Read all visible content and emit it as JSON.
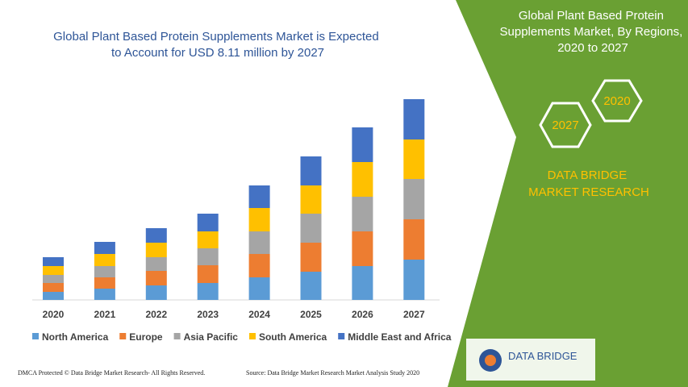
{
  "chart_data": {
    "type": "stacked-bar",
    "title": "Global Plant Based Protein Supplements Market is Expected to Account for USD 8.11 million by 2027",
    "categories": [
      "2020",
      "2021",
      "2022",
      "2023",
      "2024",
      "2025",
      "2026",
      "2027"
    ],
    "series": [
      {
        "name": "North America",
        "color": "#5b9bd5",
        "values": [
          10,
          14,
          18,
          21,
          28,
          35,
          42,
          50
        ]
      },
      {
        "name": "Europe",
        "color": "#ed7d31",
        "values": [
          11,
          14,
          18,
          22,
          29,
          36,
          43,
          50
        ]
      },
      {
        "name": "Asia Pacific",
        "color": "#a5a5a5",
        "values": [
          10,
          14,
          17,
          21,
          28,
          36,
          43,
          50
        ]
      },
      {
        "name": "South America",
        "color": "#ffc000",
        "values": [
          11,
          15,
          18,
          21,
          29,
          35,
          43,
          49
        ]
      },
      {
        "name": "Middle East and Africa",
        "color": "#4472c4",
        "values": [
          11,
          15,
          18,
          22,
          28,
          36,
          43,
          50
        ]
      }
    ]
  },
  "side_title": "Global Plant Based Protein Supplements Market, By Regions, 2020 to 2027",
  "badges": [
    "2020",
    "2027"
  ],
  "brand": "DATA BRIDGE MARKET RESEARCH",
  "logo": "DATA BRIDGE",
  "footer_left": "DMCA Protected © Data Bridge Market Research- All Rights Reserved.",
  "footer_source": "Source: Data Bridge Market Research Market Analysis Study 2020"
}
